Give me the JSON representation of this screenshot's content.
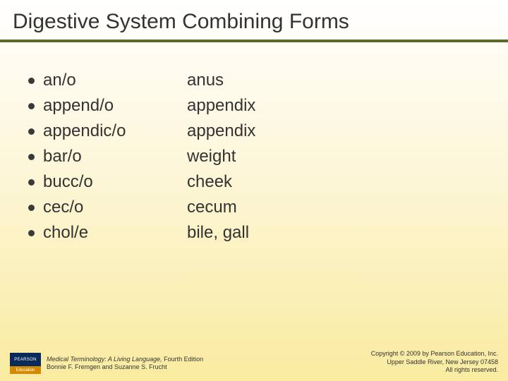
{
  "title": "Digestive System Combining Forms",
  "divider_color": "#5a6a2a",
  "terms": [
    {
      "form": "an/o",
      "meaning": "anus"
    },
    {
      "form": "append/o",
      "meaning": "appendix"
    },
    {
      "form": "appendic/o",
      "meaning": "appendix"
    },
    {
      "form": "bar/o",
      "meaning": "weight"
    },
    {
      "form": "bucc/o",
      "meaning": "cheek"
    },
    {
      "form": "cec/o",
      "meaning": "cecum"
    },
    {
      "form": "chol/e",
      "meaning": "bile, gall"
    }
  ],
  "footer": {
    "logo_top": "PEARSON",
    "logo_bottom": "Education",
    "book_title": "Medical Terminology: A Living Language, ",
    "edition": "Fourth Edition",
    "authors": "Bonnie F. Fremgen and Suzanne S. Frucht",
    "copyright_line1": "Copyright © 2009 by Pearson Education, Inc.",
    "copyright_line2": "Upper Saddle River, New Jersey 07458",
    "copyright_line3": "All rights reserved."
  }
}
